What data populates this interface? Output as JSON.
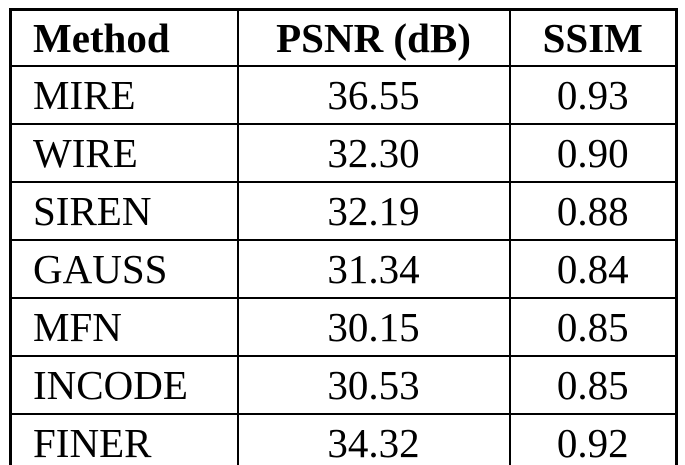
{
  "chart_data": {
    "type": "table",
    "columns": [
      "Method",
      "PSNR (dB)",
      "SSIM"
    ],
    "rows": [
      [
        "MIRE",
        "36.55",
        "0.93"
      ],
      [
        "WIRE",
        "32.30",
        "0.90"
      ],
      [
        "SIREN",
        "32.19",
        "0.88"
      ],
      [
        "GAUSS",
        "31.34",
        "0.84"
      ],
      [
        "MFN",
        "30.15",
        "0.85"
      ],
      [
        "INCODE",
        "30.53",
        "0.85"
      ],
      [
        "FINER",
        "34.32",
        "0.92"
      ]
    ],
    "title": "",
    "border_color": "#000000",
    "background_color": "#ffffff",
    "text_color": "#000000"
  }
}
